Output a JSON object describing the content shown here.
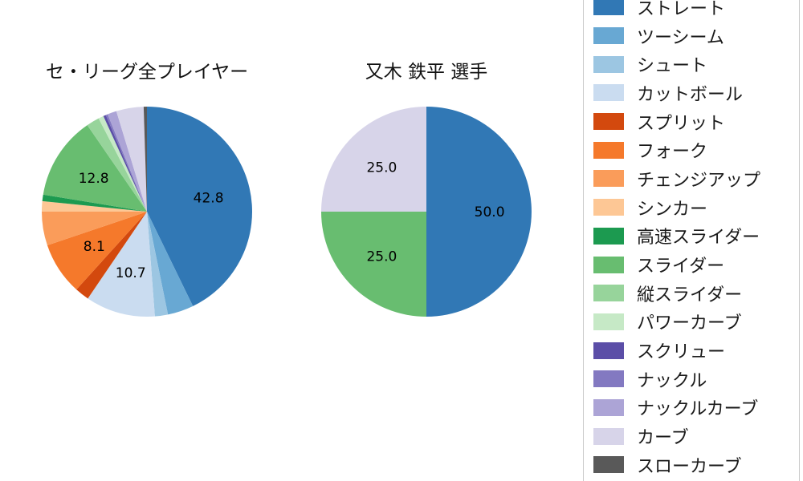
{
  "page": {
    "background_color": "#ffffff"
  },
  "chart_data": [
    {
      "type": "pie",
      "title": "セ・リーグ全プレイヤー",
      "unit": "percent",
      "start_angle": "12-oclock",
      "direction": "clockwise",
      "slices": [
        {
          "label": "ストレート",
          "value": 42.8,
          "color": "#3178b5",
          "value_label": "42.8"
        },
        {
          "label": "ツーシーム",
          "value": 4.0,
          "color": "#68a8d3"
        },
        {
          "label": "シュート",
          "value": 2.0,
          "color": "#9cc6e2"
        },
        {
          "label": "カットボール",
          "value": 10.7,
          "color": "#cadcf0",
          "value_label": "10.7"
        },
        {
          "label": "スプリット",
          "value": 2.2,
          "color": "#d3490e"
        },
        {
          "label": "フォーク",
          "value": 8.1,
          "color": "#f5792b",
          "value_label": "8.1"
        },
        {
          "label": "チェンジアップ",
          "value": 5.2,
          "color": "#fa9c5a"
        },
        {
          "label": "シンカー",
          "value": 1.6,
          "color": "#fdc795"
        },
        {
          "label": "高速スライダー",
          "value": 1.0,
          "color": "#1c9a50"
        },
        {
          "label": "スライダー",
          "value": 12.8,
          "color": "#68bd70",
          "value_label": "12.8"
        },
        {
          "label": "縦スライダー",
          "value": 2.0,
          "color": "#97d49b"
        },
        {
          "label": "パワーカーブ",
          "value": 0.8,
          "color": "#c6e9c6"
        },
        {
          "label": "スクリュー",
          "value": 0.4,
          "color": "#5b4ea7"
        },
        {
          "label": "ナックル",
          "value": 0.3,
          "color": "#8379c1"
        },
        {
          "label": "ナックルカーブ",
          "value": 1.4,
          "color": "#aca4d6"
        },
        {
          "label": "カーブ",
          "value": 4.2,
          "color": "#d7d4e9"
        },
        {
          "label": "スローカーブ",
          "value": 0.5,
          "color": "#595959"
        }
      ]
    },
    {
      "type": "pie",
      "title": "又木 鉄平 選手",
      "unit": "percent",
      "start_angle": "12-oclock",
      "direction": "clockwise",
      "slices": [
        {
          "label": "ストレート",
          "value": 50.0,
          "color": "#3178b5",
          "value_label": "50.0"
        },
        {
          "label": "スライダー",
          "value": 25.0,
          "color": "#68bd70",
          "value_label": "25.0"
        },
        {
          "label": "カーブ",
          "value": 25.0,
          "color": "#d7d4e9",
          "value_label": "25.0"
        }
      ]
    }
  ],
  "legend": {
    "items": [
      {
        "label": "ストレート",
        "color": "#3178b5"
      },
      {
        "label": "ツーシーム",
        "color": "#68a8d3"
      },
      {
        "label": "シュート",
        "color": "#9cc6e2"
      },
      {
        "label": "カットボール",
        "color": "#cadcf0"
      },
      {
        "label": "スプリット",
        "color": "#d3490e"
      },
      {
        "label": "フォーク",
        "color": "#f5792b"
      },
      {
        "label": "チェンジアップ",
        "color": "#fa9c5a"
      },
      {
        "label": "シンカー",
        "color": "#fdc795"
      },
      {
        "label": "高速スライダー",
        "color": "#1c9a50"
      },
      {
        "label": "スライダー",
        "color": "#68bd70"
      },
      {
        "label": "縦スライダー",
        "color": "#97d49b"
      },
      {
        "label": "パワーカーブ",
        "color": "#c6e9c6"
      },
      {
        "label": "スクリュー",
        "color": "#5b4ea7"
      },
      {
        "label": "ナックル",
        "color": "#8379c1"
      },
      {
        "label": "ナックルカーブ",
        "color": "#aca4d6"
      },
      {
        "label": "カーブ",
        "color": "#d7d4e9"
      },
      {
        "label": "スローカーブ",
        "color": "#595959"
      }
    ]
  }
}
